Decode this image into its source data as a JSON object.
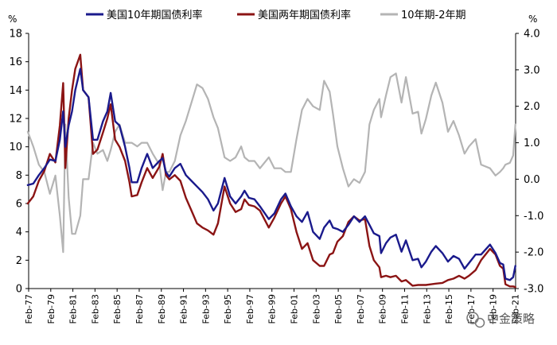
{
  "chart_data": {
    "type": "line",
    "title": "",
    "left_axis": {
      "unit": "%",
      "ylim": [
        0,
        18
      ],
      "ticks": [
        0,
        2,
        4,
        6,
        8,
        10,
        12,
        14,
        16,
        18
      ]
    },
    "right_axis": {
      "unit": "%",
      "ylim": [
        -3.0,
        4.0
      ],
      "ticks": [
        -3.0,
        -2.0,
        -1.0,
        0.0,
        1.0,
        2.0,
        3.0,
        4.0
      ],
      "tick_labels": [
        "-3.0",
        "-2.0",
        "-1.0",
        "0.0",
        "1.0",
        "2.0",
        "3.0",
        "4.0"
      ]
    },
    "x_range": [
      1977.08,
      2021.12
    ],
    "x_ticks": [
      {
        "year": 1977.08,
        "label": "Feb-77"
      },
      {
        "year": 1979.08,
        "label": "Feb-79"
      },
      {
        "year": 1981.08,
        "label": "Feb-81"
      },
      {
        "year": 1983.08,
        "label": "Feb-83"
      },
      {
        "year": 1985.08,
        "label": "Feb-85"
      },
      {
        "year": 1987.08,
        "label": "Feb-87"
      },
      {
        "year": 1989.08,
        "label": "Feb-89"
      },
      {
        "year": 1991.08,
        "label": "Feb-91"
      },
      {
        "year": 1993.08,
        "label": "Feb-93"
      },
      {
        "year": 1995.08,
        "label": "Feb-95"
      },
      {
        "year": 1997.08,
        "label": "Feb-97"
      },
      {
        "year": 1999.08,
        "label": "Feb-99"
      },
      {
        "year": 2001.08,
        "label": "Feb-01"
      },
      {
        "year": 2003.08,
        "label": "Feb-03"
      },
      {
        "year": 2005.08,
        "label": "Feb-05"
      },
      {
        "year": 2007.08,
        "label": "Feb-07"
      },
      {
        "year": 2009.08,
        "label": "Feb-09"
      },
      {
        "year": 2011.08,
        "label": "Feb-11"
      },
      {
        "year": 2013.08,
        "label": "Feb-13"
      },
      {
        "year": 2015.08,
        "label": "Feb-15"
      },
      {
        "year": 2017.08,
        "label": "Feb-17"
      },
      {
        "year": 2019.08,
        "label": "Feb-19"
      },
      {
        "year": 2021.08,
        "label": "Feb-21"
      }
    ],
    "series": [
      {
        "name": "美国10年期国债利率",
        "axis": "left",
        "color": "#1a1a8c",
        "x": [
          1977.0,
          1977.5,
          1978.0,
          1978.5,
          1979.0,
          1979.5,
          1979.9,
          1980.2,
          1980.4,
          1980.7,
          1981.0,
          1981.3,
          1981.75,
          1982.0,
          1982.5,
          1982.9,
          1983.3,
          1983.8,
          1984.2,
          1984.5,
          1984.9,
          1985.3,
          1985.8,
          1986.2,
          1986.4,
          1986.9,
          1987.3,
          1987.8,
          1988.3,
          1988.9,
          1989.2,
          1989.5,
          1989.8,
          1990.3,
          1990.8,
          1991.3,
          1991.8,
          1992.3,
          1992.8,
          1993.3,
          1993.8,
          1994.2,
          1994.8,
          1995.3,
          1995.8,
          1996.3,
          1996.6,
          1997.0,
          1997.5,
          1998.0,
          1998.8,
          1999.3,
          1999.9,
          2000.3,
          2000.8,
          2001.3,
          2001.8,
          2002.3,
          2002.8,
          2003.4,
          2003.8,
          2004.3,
          2004.6,
          2005.0,
          2005.5,
          2006.0,
          2006.5,
          2007.0,
          2007.5,
          2007.9,
          2008.3,
          2008.8,
          2008.95,
          2009.4,
          2009.8,
          2010.3,
          2010.8,
          2011.2,
          2011.8,
          2012.3,
          2012.6,
          2013.0,
          2013.5,
          2013.9,
          2014.5,
          2015.0,
          2015.5,
          2016.0,
          2016.5,
          2016.9,
          2017.5,
          2018.0,
          2018.8,
          2019.3,
          2019.7,
          2020.0,
          2020.2,
          2020.6,
          2020.9,
          2021.1
        ],
        "y": [
          7.3,
          7.4,
          8.0,
          8.5,
          9.1,
          9.0,
          10.5,
          12.5,
          10.0,
          11.5,
          12.5,
          14.0,
          15.5,
          14.0,
          13.5,
          10.5,
          10.5,
          11.8,
          12.5,
          13.8,
          11.8,
          11.5,
          10.0,
          8.5,
          7.5,
          7.5,
          8.5,
          9.5,
          8.5,
          9.0,
          9.2,
          8.2,
          7.9,
          8.5,
          8.8,
          8.0,
          7.6,
          7.2,
          6.8,
          6.3,
          5.5,
          6.0,
          7.8,
          6.5,
          6.0,
          6.5,
          6.9,
          6.4,
          6.3,
          5.8,
          4.9,
          5.3,
          6.3,
          6.7,
          5.8,
          5.1,
          4.7,
          5.4,
          4.0,
          3.5,
          4.3,
          4.8,
          4.3,
          4.2,
          4.0,
          4.5,
          5.1,
          4.7,
          5.1,
          4.5,
          3.9,
          3.7,
          2.5,
          3.2,
          3.6,
          3.8,
          2.6,
          3.4,
          2.0,
          2.1,
          1.5,
          1.9,
          2.6,
          3.0,
          2.5,
          1.9,
          2.3,
          2.1,
          1.4,
          1.8,
          2.4,
          2.4,
          3.1,
          2.5,
          1.8,
          1.7,
          0.7,
          0.6,
          0.8,
          1.6
        ]
      },
      {
        "name": "美国两年期国债利率",
        "axis": "left",
        "color": "#8b1414",
        "x": [
          1977.0,
          1977.5,
          1978.0,
          1978.5,
          1979.0,
          1979.5,
          1979.9,
          1980.2,
          1980.4,
          1980.7,
          1981.0,
          1981.3,
          1981.75,
          1982.0,
          1982.5,
          1982.9,
          1983.3,
          1983.8,
          1984.2,
          1984.5,
          1984.9,
          1985.3,
          1985.8,
          1986.2,
          1986.4,
          1986.9,
          1987.3,
          1987.8,
          1988.3,
          1988.9,
          1989.2,
          1989.5,
          1989.8,
          1990.3,
          1990.8,
          1991.3,
          1991.8,
          1992.3,
          1992.8,
          1993.3,
          1993.8,
          1994.2,
          1994.8,
          1995.3,
          1995.8,
          1996.3,
          1996.6,
          1997.0,
          1997.5,
          1998.0,
          1998.8,
          1999.3,
          1999.9,
          2000.3,
          2000.8,
          2001.3,
          2001.8,
          2002.3,
          2002.8,
          2003.4,
          2003.8,
          2004.3,
          2004.6,
          2005.0,
          2005.5,
          2006.0,
          2006.5,
          2007.0,
          2007.5,
          2007.9,
          2008.3,
          2008.8,
          2008.95,
          2009.4,
          2009.8,
          2010.3,
          2010.8,
          2011.2,
          2011.8,
          2012.3,
          2012.6,
          2013.0,
          2013.5,
          2013.9,
          2014.5,
          2015.0,
          2015.5,
          2016.0,
          2016.5,
          2016.9,
          2017.5,
          2018.0,
          2018.8,
          2019.3,
          2019.7,
          2020.0,
          2020.2,
          2020.6,
          2020.9,
          2021.1
        ],
        "y": [
          6.0,
          6.5,
          7.6,
          8.3,
          9.5,
          8.9,
          11.5,
          14.5,
          8.5,
          12.0,
          14.0,
          15.5,
          16.5,
          14.0,
          13.5,
          9.5,
          9.8,
          11.0,
          12.0,
          13.0,
          10.5,
          10.0,
          9.0,
          7.5,
          6.5,
          6.6,
          7.5,
          8.5,
          7.8,
          8.6,
          9.5,
          8.0,
          7.7,
          8.0,
          7.6,
          6.4,
          5.5,
          4.6,
          4.3,
          4.1,
          3.8,
          4.6,
          7.2,
          6.0,
          5.4,
          5.6,
          6.3,
          5.9,
          5.8,
          5.5,
          4.3,
          5.0,
          6.0,
          6.5,
          5.6,
          4.0,
          2.8,
          3.2,
          2.0,
          1.6,
          1.6,
          2.4,
          2.5,
          3.3,
          3.7,
          4.7,
          5.1,
          4.8,
          4.9,
          3.0,
          2.0,
          1.5,
          0.8,
          0.9,
          0.8,
          0.9,
          0.5,
          0.6,
          0.2,
          0.25,
          0.25,
          0.25,
          0.3,
          0.35,
          0.4,
          0.6,
          0.7,
          0.9,
          0.7,
          0.9,
          1.3,
          2.0,
          2.8,
          2.4,
          1.6,
          1.4,
          0.3,
          0.15,
          0.15,
          0.1
        ]
      },
      {
        "name": "10年期-2年期",
        "axis": "right",
        "color": "#b4b4b4",
        "x": [
          1977.0,
          1977.5,
          1978.0,
          1978.5,
          1979.0,
          1979.5,
          1979.9,
          1980.2,
          1980.4,
          1980.7,
          1981.0,
          1981.3,
          1981.75,
          1982.0,
          1982.5,
          1982.9,
          1983.3,
          1983.8,
          1984.2,
          1984.5,
          1984.9,
          1985.3,
          1985.8,
          1986.2,
          1986.4,
          1986.9,
          1987.3,
          1987.8,
          1988.3,
          1988.9,
          1989.2,
          1989.5,
          1989.8,
          1990.3,
          1990.8,
          1991.3,
          1991.8,
          1992.3,
          1992.8,
          1993.3,
          1993.8,
          1994.2,
          1994.8,
          1995.3,
          1995.8,
          1996.3,
          1996.6,
          1997.0,
          1997.5,
          1998.0,
          1998.8,
          1999.3,
          1999.9,
          2000.3,
          2000.8,
          2001.3,
          2001.8,
          2002.3,
          2002.8,
          2003.4,
          2003.8,
          2004.3,
          2004.6,
          2005.0,
          2005.5,
          2006.0,
          2006.5,
          2007.0,
          2007.5,
          2007.9,
          2008.3,
          2008.8,
          2008.95,
          2009.4,
          2009.8,
          2010.3,
          2010.8,
          2011.2,
          2011.8,
          2012.3,
          2012.6,
          2013.0,
          2013.5,
          2013.9,
          2014.5,
          2015.0,
          2015.5,
          2016.0,
          2016.5,
          2016.9,
          2017.5,
          2018.0,
          2018.8,
          2019.3,
          2019.7,
          2020.0,
          2020.2,
          2020.6,
          2020.9,
          2021.1
        ],
        "y": [
          1.3,
          0.9,
          0.4,
          0.2,
          -0.4,
          0.1,
          -1.0,
          -2.0,
          1.5,
          -0.5,
          -1.5,
          -1.5,
          -1.0,
          0.0,
          0.0,
          1.0,
          0.7,
          0.8,
          0.5,
          0.8,
          1.3,
          1.5,
          1.0,
          1.0,
          1.0,
          0.9,
          1.0,
          1.0,
          0.7,
          0.4,
          -0.3,
          0.2,
          0.2,
          0.5,
          1.2,
          1.6,
          2.1,
          2.6,
          2.5,
          2.2,
          1.7,
          1.4,
          0.6,
          0.5,
          0.6,
          0.9,
          0.6,
          0.5,
          0.5,
          0.3,
          0.6,
          0.3,
          0.3,
          0.2,
          0.2,
          1.1,
          1.9,
          2.2,
          2.0,
          1.9,
          2.7,
          2.4,
          1.8,
          0.9,
          0.3,
          -0.2,
          0.0,
          -0.1,
          0.2,
          1.5,
          1.9,
          2.2,
          1.7,
          2.3,
          2.8,
          2.9,
          2.1,
          2.8,
          1.8,
          1.85,
          1.25,
          1.65,
          2.3,
          2.65,
          2.1,
          1.3,
          1.6,
          1.2,
          0.7,
          0.9,
          1.1,
          0.4,
          0.3,
          0.1,
          0.2,
          0.3,
          0.4,
          0.45,
          0.65,
          1.5
        ]
      }
    ]
  },
  "watermark": "中金策略"
}
